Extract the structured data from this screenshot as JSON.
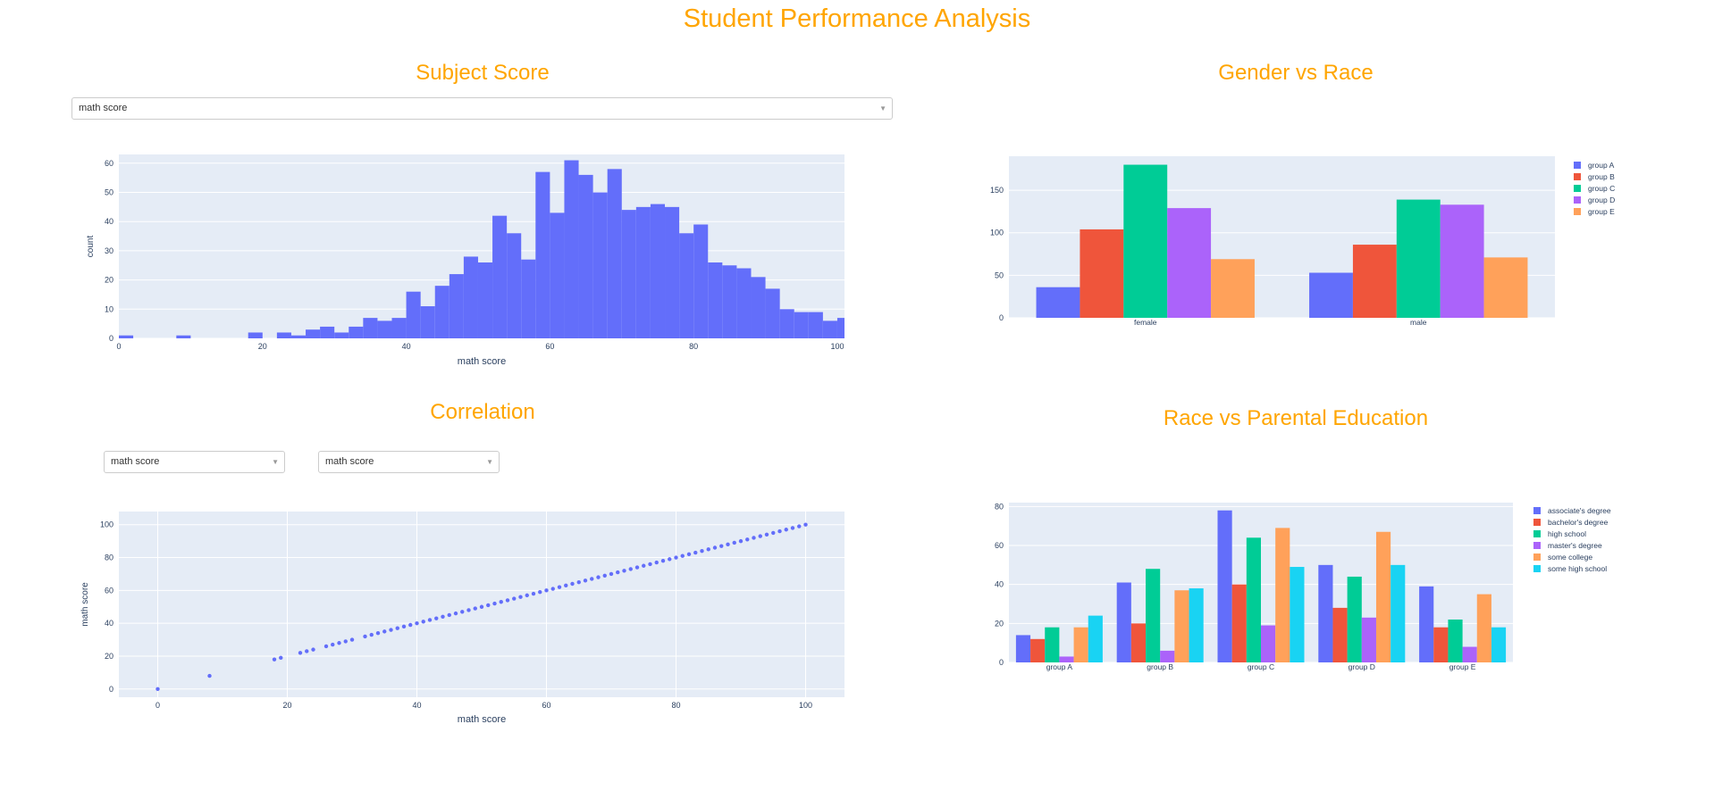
{
  "page": {
    "title": "Student Performance Analysis"
  },
  "subject_panel": {
    "title": "Subject Score",
    "dropdown": {
      "selected": "math score"
    }
  },
  "gender_panel": {
    "title": "Gender vs Race"
  },
  "correlation_panel": {
    "title": "Correlation",
    "dropdown_x": {
      "selected": "math score"
    },
    "dropdown_y": {
      "selected": "math score"
    }
  },
  "race_panel": {
    "title": "Race vs Parental Education"
  },
  "colors": {
    "plot_bg": "#E5ECF6",
    "grid": "#ffffff",
    "title": "#FFA500",
    "series": [
      "#636EFA",
      "#EF553B",
      "#00CC96",
      "#AB63FA",
      "#FFA15A",
      "#19D3F3"
    ]
  },
  "chart_data": [
    {
      "type": "bar",
      "kind": "histogram",
      "xlabel": "math score",
      "ylabel": "count",
      "xlim": [
        0,
        101
      ],
      "ylim": [
        0,
        63
      ],
      "xticks": [
        0,
        20,
        40,
        60,
        80,
        100
      ],
      "yticks": [
        0,
        10,
        20,
        30,
        40,
        50,
        60
      ],
      "bin_width": 2,
      "bin_starts": [
        0,
        2,
        4,
        6,
        8,
        10,
        12,
        14,
        16,
        18,
        20,
        22,
        24,
        26,
        28,
        30,
        32,
        34,
        36,
        38,
        40,
        42,
        44,
        46,
        48,
        50,
        52,
        54,
        56,
        58,
        60,
        62,
        64,
        66,
        68,
        70,
        72,
        74,
        76,
        78,
        80,
        82,
        84,
        86,
        88,
        90,
        92,
        94,
        96,
        98,
        100
      ],
      "values": [
        1,
        0,
        0,
        0,
        1,
        0,
        0,
        0,
        0,
        2,
        0,
        2,
        1,
        3,
        4,
        2,
        4,
        7,
        6,
        7,
        16,
        11,
        18,
        22,
        28,
        26,
        42,
        36,
        27,
        57,
        43,
        61,
        56,
        50,
        58,
        44,
        45,
        46,
        45,
        36,
        39,
        26,
        25,
        24,
        21,
        17,
        10,
        9,
        9,
        6,
        7
      ]
    },
    {
      "type": "bar",
      "categories": [
        "female",
        "male"
      ],
      "ylim": [
        0,
        190
      ],
      "yticks": [
        0,
        50,
        100,
        150
      ],
      "legend_position": "right",
      "series": [
        {
          "name": "group A",
          "values": [
            36,
            53
          ]
        },
        {
          "name": "group B",
          "values": [
            104,
            86
          ]
        },
        {
          "name": "group C",
          "values": [
            180,
            139
          ]
        },
        {
          "name": "group D",
          "values": [
            129,
            133
          ]
        },
        {
          "name": "group E",
          "values": [
            69,
            71
          ]
        }
      ]
    },
    {
      "type": "scatter",
      "xlabel": "math score",
      "ylabel": "math score",
      "xlim": [
        -6,
        106
      ],
      "ylim": [
        -5,
        108
      ],
      "xticks": [
        0,
        20,
        40,
        60,
        80,
        100
      ],
      "yticks": [
        0,
        20,
        40,
        60,
        80,
        100
      ],
      "x": [
        0,
        8,
        18,
        19,
        22,
        23,
        24,
        26,
        27,
        28,
        29,
        30,
        32,
        33,
        34,
        35,
        36,
        37,
        38,
        39,
        40,
        41,
        42,
        43,
        44,
        45,
        46,
        47,
        48,
        49,
        50,
        51,
        52,
        53,
        54,
        55,
        56,
        57,
        58,
        59,
        60,
        61,
        62,
        63,
        64,
        65,
        66,
        67,
        68,
        69,
        70,
        71,
        72,
        73,
        74,
        75,
        76,
        77,
        78,
        79,
        80,
        81,
        82,
        83,
        84,
        85,
        86,
        87,
        88,
        89,
        90,
        91,
        92,
        93,
        94,
        95,
        96,
        97,
        98,
        99,
        100
      ],
      "y": [
        0,
        8,
        18,
        19,
        22,
        23,
        24,
        26,
        27,
        28,
        29,
        30,
        32,
        33,
        34,
        35,
        36,
        37,
        38,
        39,
        40,
        41,
        42,
        43,
        44,
        45,
        46,
        47,
        48,
        49,
        50,
        51,
        52,
        53,
        54,
        55,
        56,
        57,
        58,
        59,
        60,
        61,
        62,
        63,
        64,
        65,
        66,
        67,
        68,
        69,
        70,
        71,
        72,
        73,
        74,
        75,
        76,
        77,
        78,
        79,
        80,
        81,
        82,
        83,
        84,
        85,
        86,
        87,
        88,
        89,
        90,
        91,
        92,
        93,
        94,
        95,
        96,
        97,
        98,
        99,
        100
      ]
    },
    {
      "type": "bar",
      "categories": [
        "group A",
        "group B",
        "group C",
        "group D",
        "group E"
      ],
      "ylim": [
        0,
        82
      ],
      "yticks": [
        0,
        20,
        40,
        60,
        80
      ],
      "legend_position": "right",
      "series": [
        {
          "name": "associate's degree",
          "values": [
            14,
            41,
            78,
            50,
            39
          ]
        },
        {
          "name": "bachelor's degree",
          "values": [
            12,
            20,
            40,
            28,
            18
          ]
        },
        {
          "name": "high school",
          "values": [
            18,
            48,
            64,
            44,
            22
          ]
        },
        {
          "name": "master's degree",
          "values": [
            3,
            6,
            19,
            23,
            8
          ]
        },
        {
          "name": "some college",
          "values": [
            18,
            37,
            69,
            67,
            35
          ]
        },
        {
          "name": "some high school",
          "values": [
            24,
            38,
            49,
            50,
            18
          ]
        }
      ]
    }
  ]
}
